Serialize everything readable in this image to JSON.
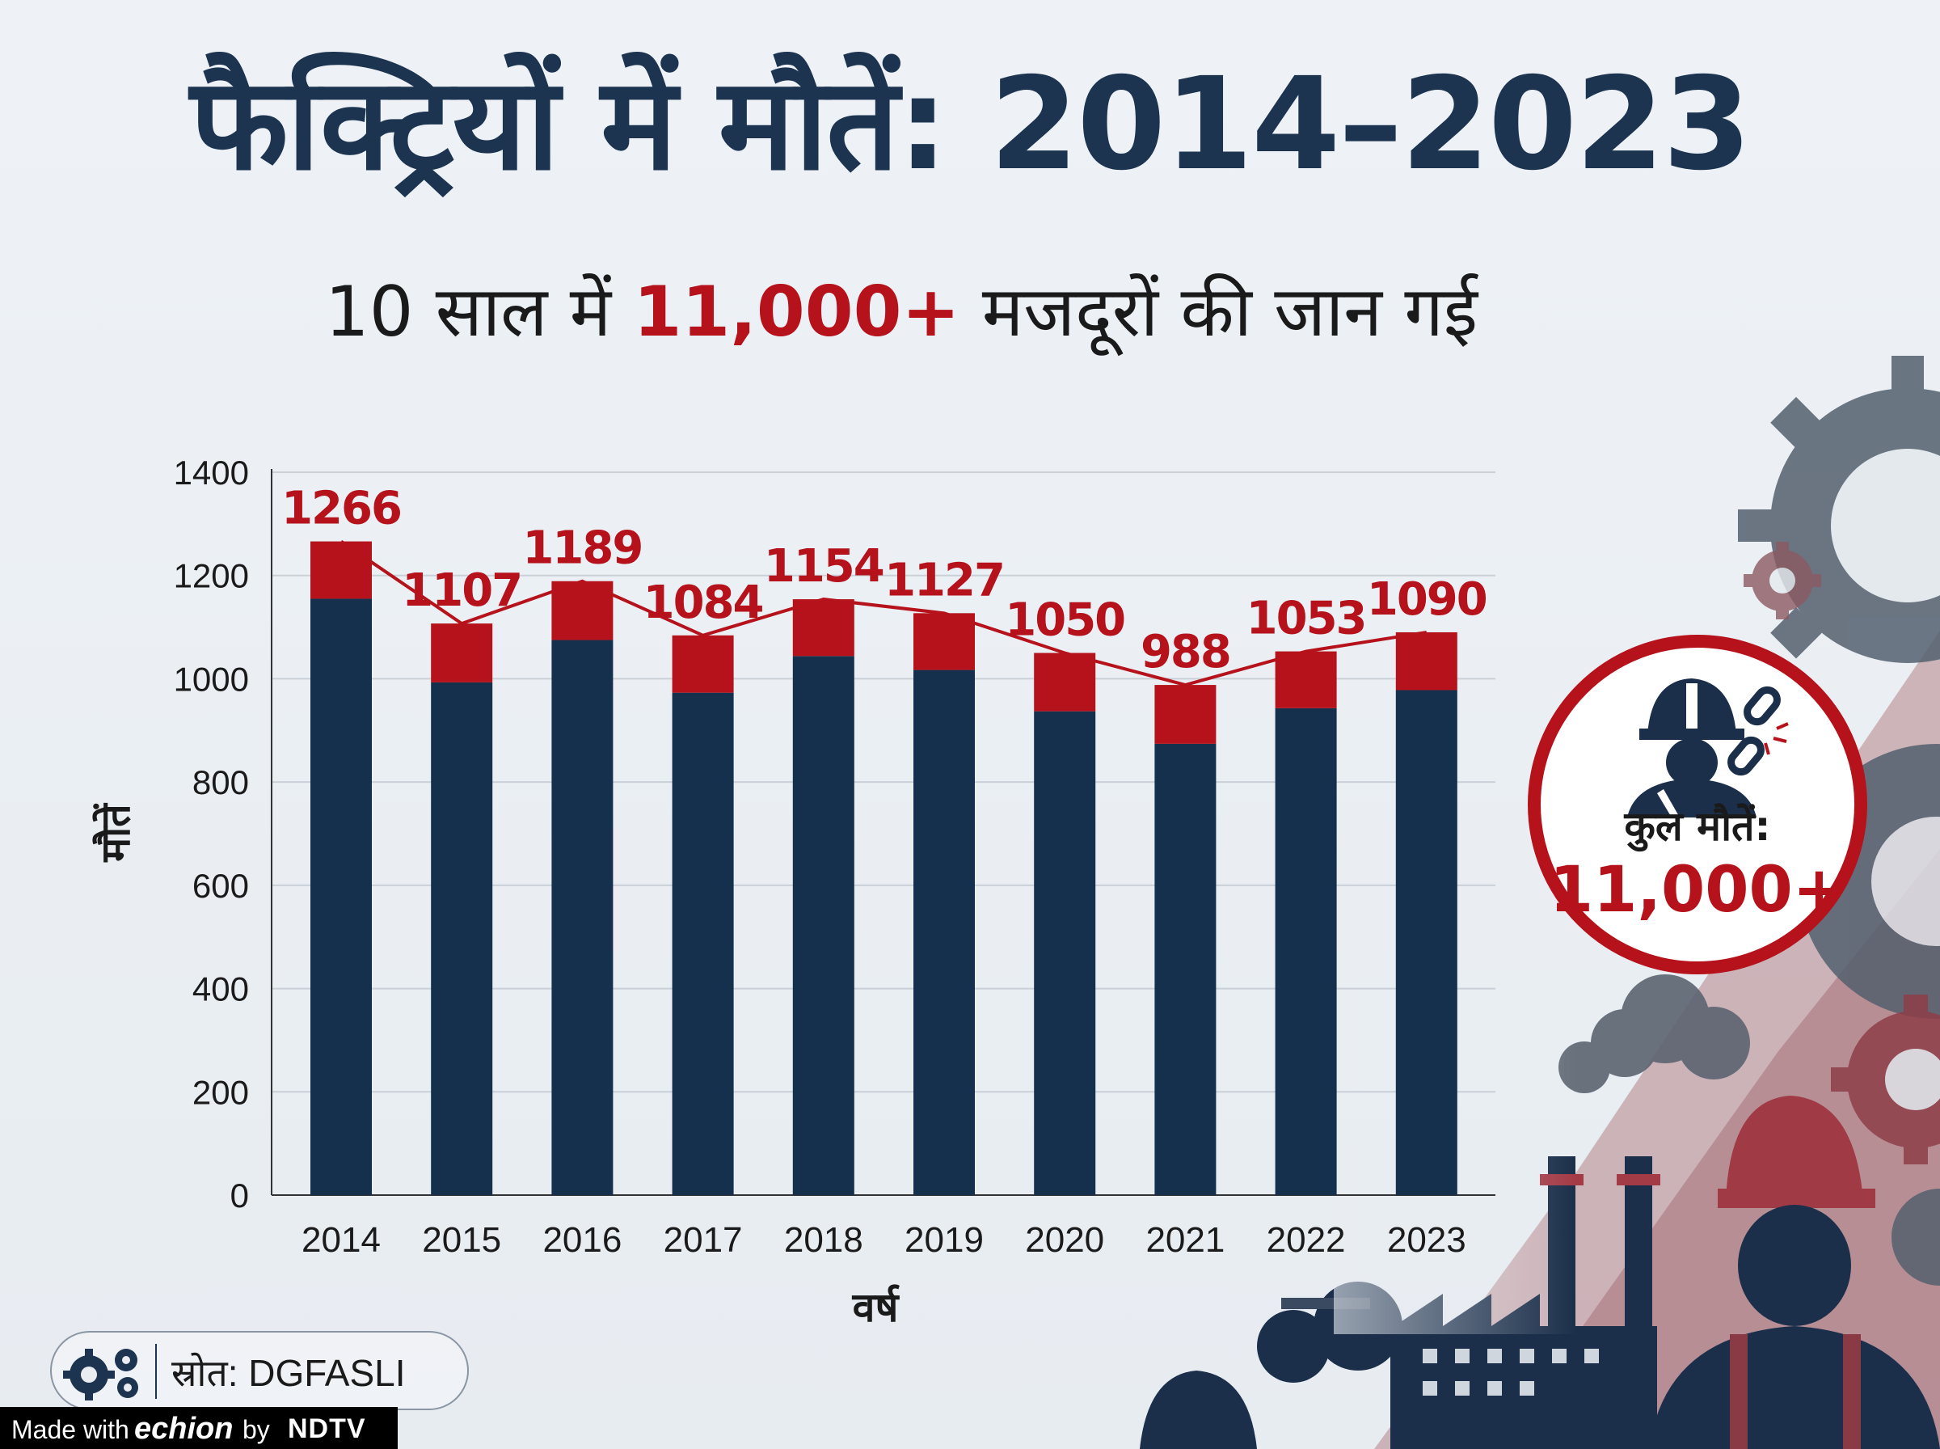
{
  "title": "फैक्ट्रियों में मौतें: 2014–2023",
  "subtitle": {
    "prefix": "10 साल में ",
    "highlight": "11,000+",
    "suffix": " मजदूरों की जान गई"
  },
  "badge": {
    "label": "कुल मौतें:",
    "value": "11,000+"
  },
  "source": {
    "text": "स्रोत: DGFASLI"
  },
  "footer": {
    "made_with": "Made with",
    "brand": "echion",
    "by": "by",
    "partner": "NDTV"
  },
  "colors": {
    "navy": "#15304d",
    "red": "#b5121b",
    "title": "#1c3450"
  },
  "chart_data": {
    "type": "bar",
    "title": "फैक्ट्रियों में मौतें: 2014–2023",
    "xlabel": "वर्ष",
    "ylabel": "मौतें",
    "categories": [
      "2014",
      "2015",
      "2016",
      "2017",
      "2018",
      "2019",
      "2020",
      "2021",
      "2022",
      "2023"
    ],
    "values": [
      1266,
      1107,
      1189,
      1084,
      1154,
      1127,
      1050,
      988,
      1053,
      1090
    ],
    "series": [
      {
        "name": "navy-segment",
        "values": [
          1155,
          993,
          1075,
          973,
          1044,
          1017,
          937,
          874,
          943,
          978
        ]
      },
      {
        "name": "red-segment",
        "values": [
          111,
          114,
          114,
          111,
          110,
          110,
          113,
          114,
          110,
          112
        ]
      }
    ],
    "line": {
      "name": "total",
      "values": [
        1266,
        1107,
        1189,
        1084,
        1154,
        1127,
        1050,
        988,
        1053,
        1090
      ]
    },
    "ylim": [
      0,
      1400
    ],
    "yticks": [
      0,
      200,
      400,
      600,
      800,
      1000,
      1200,
      1400
    ],
    "grid": true
  }
}
